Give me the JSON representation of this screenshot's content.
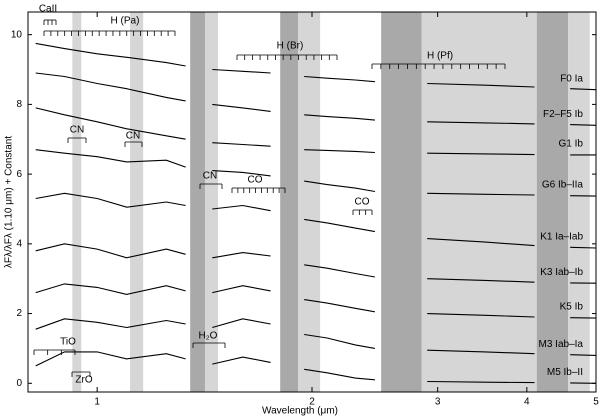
{
  "chart_data": {
    "type": "line",
    "xlabel": "Wavelength (μm)",
    "ylabel": "λFλ/λFλ (1.10 μm) + Constant",
    "xscale": "log",
    "xlim": [
      0.8,
      5
    ],
    "xticks": [
      1,
      2,
      3,
      4,
      5
    ],
    "ylim": [
      -0.25,
      10.65
    ],
    "yticks": [
      0,
      2,
      4,
      6,
      8,
      10
    ],
    "bands": [
      {
        "x": [
          0.923,
          0.95
        ],
        "color": "#d6d6d6"
      },
      {
        "x": [
          1.112,
          1.16
        ],
        "color": "#d6d6d6"
      },
      {
        "x": [
          1.35,
          1.416
        ],
        "color": "#a9a9a9"
      },
      {
        "x": [
          1.416,
          1.477
        ],
        "color": "#d6d6d6"
      },
      {
        "x": [
          1.805,
          1.912
        ],
        "color": "#a9a9a9"
      },
      {
        "x": [
          1.912,
          2.053
        ],
        "color": "#d6d6d6"
      },
      {
        "x": [
          2.5,
          2.85
        ],
        "color": "#a9a9a9"
      },
      {
        "x": [
          2.85,
          4.13
        ],
        "color": "#d6d6d6"
      },
      {
        "x": [
          4.13,
          4.57
        ],
        "color": "#a9a9a9"
      },
      {
        "x": [
          4.57,
          4.9
        ],
        "color": "#d6d6d6"
      }
    ],
    "x": [
      0.82,
      0.9,
      1.0,
      1.1,
      1.25,
      1.33,
      1.38,
      1.45,
      1.6,
      1.75,
      1.85,
      1.95,
      2.1,
      2.3,
      2.45,
      2.7,
      2.9,
      3.5,
      4.1,
      4.35,
      4.6,
      5.0
    ],
    "series": [
      {
        "name": "F0 Ia",
        "color": "#000000",
        "values": [
          9.75,
          9.6,
          9.45,
          9.35,
          9.2,
          9.1,
          null,
          9.0,
          8.95,
          8.9,
          null,
          8.8,
          8.75,
          8.7,
          8.65,
          null,
          8.6,
          8.55,
          8.5,
          null,
          8.45,
          8.42
        ]
      },
      {
        "name": "F2–F5 Ib",
        "color": "#000000",
        "values": [
          8.9,
          8.8,
          8.6,
          8.45,
          8.2,
          8.1,
          null,
          8.0,
          7.9,
          7.8,
          null,
          7.7,
          7.65,
          7.6,
          7.55,
          null,
          7.5,
          7.47,
          7.44,
          null,
          7.42,
          7.4
        ]
      },
      {
        "name": "G1 Ib",
        "color": "#000000",
        "values": [
          7.9,
          7.7,
          7.5,
          7.3,
          7.1,
          7.0,
          null,
          6.9,
          6.85,
          6.8,
          null,
          6.7,
          6.68,
          6.65,
          6.62,
          null,
          6.6,
          6.58,
          6.56,
          null,
          6.55,
          6.55
        ]
      },
      {
        "name": "G6 Ib–IIa",
        "color": "#000000",
        "values": [
          6.7,
          6.6,
          6.5,
          6.35,
          6.4,
          6.2,
          null,
          6.1,
          6.05,
          5.95,
          null,
          5.8,
          5.7,
          5.6,
          5.5,
          null,
          5.45,
          5.42,
          5.4,
          null,
          5.38,
          5.37
        ]
      },
      {
        "name": "K1 Ia–Iab",
        "color": "#000000",
        "values": [
          5.3,
          5.45,
          5.3,
          5.05,
          5.2,
          5.1,
          null,
          5.0,
          5.1,
          4.95,
          null,
          4.7,
          4.6,
          4.45,
          4.35,
          null,
          4.15,
          4.05,
          3.95,
          null,
          3.9,
          3.88
        ]
      },
      {
        "name": "K3 Iab–Ib",
        "color": "#000000",
        "values": [
          3.8,
          4.0,
          3.85,
          3.6,
          3.85,
          3.7,
          null,
          3.6,
          3.75,
          3.65,
          null,
          3.4,
          3.3,
          3.15,
          3.05,
          null,
          3.0,
          2.95,
          2.9,
          null,
          2.88,
          2.87
        ]
      },
      {
        "name": "K5 Ib",
        "color": "#000000",
        "values": [
          2.6,
          2.85,
          2.75,
          2.55,
          2.8,
          2.65,
          null,
          2.6,
          2.8,
          2.65,
          null,
          2.4,
          2.3,
          2.15,
          2.05,
          null,
          2.0,
          1.95,
          1.9,
          null,
          1.88,
          1.87
        ]
      },
      {
        "name": "M3 Iab–Ia",
        "color": "#000000",
        "values": [
          1.55,
          1.85,
          1.75,
          1.6,
          1.8,
          1.7,
          null,
          1.6,
          1.85,
          1.7,
          null,
          1.4,
          1.3,
          1.1,
          1.0,
          null,
          0.95,
          0.9,
          0.85,
          null,
          0.82,
          0.8
        ]
      },
      {
        "name": "M5 Ib–II",
        "color": "#000000",
        "values": [
          0.5,
          0.9,
          0.9,
          0.7,
          0.85,
          0.7,
          null,
          0.55,
          0.75,
          0.6,
          null,
          0.4,
          0.3,
          0.15,
          0.1,
          null,
          0.05,
          0.03,
          0.02,
          null,
          0.01,
          0.0
        ]
      }
    ],
    "annotations": [
      "CaII",
      "H (Pa)",
      "H (Br)",
      "H (Pf)",
      "CN",
      "CN",
      "CN",
      "CO",
      "CO",
      "TiO",
      "ZrO",
      "H₂O"
    ]
  }
}
